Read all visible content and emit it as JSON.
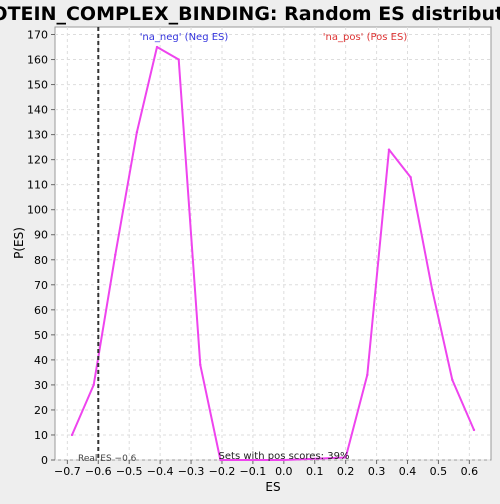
{
  "chart_data": {
    "type": "line",
    "title": "PROTEIN_COMPLEX_BINDING: Random ES distribution",
    "xlabel": "ES",
    "ylabel": "P(ES)",
    "xlim": [
      -0.74,
      0.67
    ],
    "ylim": [
      0,
      173
    ],
    "x_ticks": [
      -0.7,
      -0.6,
      -0.5,
      -0.4,
      -0.3,
      -0.2,
      -0.1,
      0.0,
      0.1,
      0.2,
      0.3,
      0.4,
      0.5,
      0.6
    ],
    "x_tick_labels": [
      "−0.7",
      "−0.6",
      "−0.5",
      "−0.4",
      "−0.3",
      "−0.2",
      "−0.1",
      "0.0",
      "0.1",
      "0.2",
      "0.3",
      "0.4",
      "0.5",
      "0.6"
    ],
    "y_ticks": [
      0,
      10,
      20,
      30,
      40,
      50,
      60,
      70,
      80,
      90,
      100,
      110,
      120,
      130,
      140,
      150,
      160,
      170
    ],
    "grid": true,
    "series": [
      {
        "color": "#ee44ee",
        "x": [
          -0.685,
          -0.615,
          -0.545,
          -0.475,
          -0.41,
          -0.34,
          -0.27,
          -0.205,
          0.0,
          0.2,
          0.27,
          0.34,
          0.41,
          0.48,
          0.545,
          0.615
        ],
        "y": [
          10,
          30,
          82,
          131,
          165,
          160,
          38,
          0,
          0,
          1,
          34,
          124,
          113,
          68,
          32,
          12
        ]
      }
    ],
    "real_es": {
      "x": -0.6,
      "label": "Real ES −0.6"
    },
    "annotations": {
      "neg": "'na_neg' (Neg ES)",
      "pos": "'na_pos' (Pos ES)",
      "pos_scores": "Sets with pos scores: 39%"
    },
    "colors": {
      "neg_label": "#3333dd",
      "pos_label": "#dd3333",
      "line": "#ee44ee",
      "grid": "#dddddd",
      "real_es_line": "#333333"
    }
  }
}
